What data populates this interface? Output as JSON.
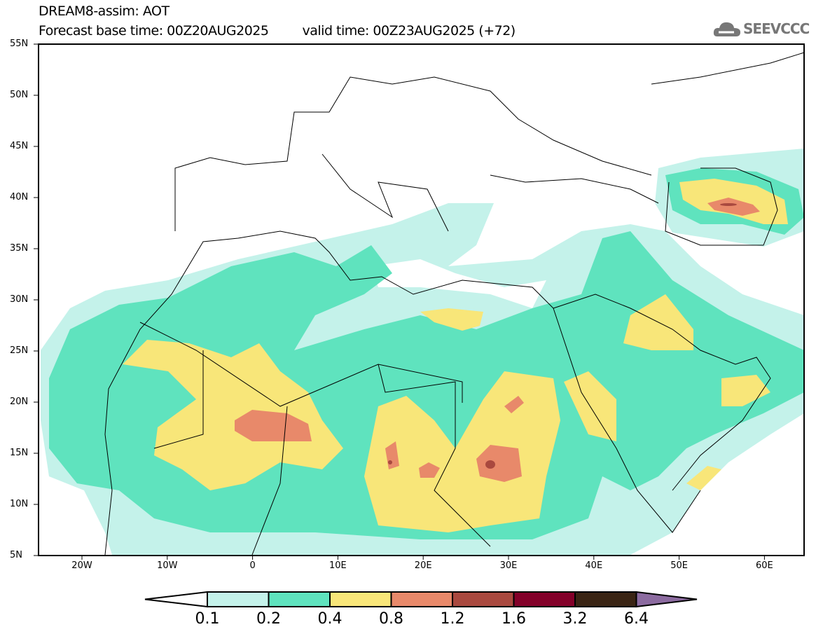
{
  "title": "DREAM8-assim: AOT",
  "base_time": "Forecast base time: 00Z20AUG2025",
  "valid_time": "valid time: 00Z23AUG2025 (+72)",
  "logo": "SEEVCCC",
  "lat_labels": [
    "55N",
    "50N",
    "45N",
    "40N",
    "35N",
    "30N",
    "25N",
    "20N",
    "15N",
    "10N",
    "5N"
  ],
  "lon_labels": [
    "20W",
    "10W",
    "0",
    "10E",
    "20E",
    "30E",
    "40E",
    "50E",
    "60E"
  ],
  "colorbar": {
    "labels": [
      "0.1",
      "0.2",
      "0.4",
      "0.8",
      "1.2",
      "1.6",
      "3.2",
      "6.4"
    ],
    "colors": [
      "#ffffff",
      "#c4f2ea",
      "#5fe3be",
      "#f8e679",
      "#e8896a",
      "#a9493f",
      "#830029",
      "#3a2414",
      "#8c6ba0"
    ]
  }
}
